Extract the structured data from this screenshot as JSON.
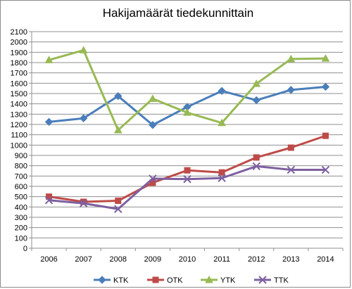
{
  "chart_data": {
    "type": "line",
    "title": "Hakijamäärät tiedekunnittain",
    "xlabel": "",
    "ylabel": "",
    "x": [
      "2006",
      "2007",
      "2008",
      "2009",
      "2010",
      "2011",
      "2012",
      "2013",
      "2014"
    ],
    "ylim": [
      0,
      2100
    ],
    "yticks": [
      0,
      100,
      200,
      300,
      400,
      500,
      600,
      700,
      800,
      900,
      1000,
      1100,
      1200,
      1300,
      1400,
      1500,
      1600,
      1700,
      1800,
      1900,
      2000,
      2100
    ],
    "grid": true,
    "legend_position": "bottom",
    "series": [
      {
        "name": "KTK",
        "color": "#4a7ebb",
        "marker": "diamond",
        "values": [
          1225,
          1260,
          1475,
          1195,
          1370,
          1525,
          1435,
          1535,
          1565
        ]
      },
      {
        "name": "OTK",
        "color": "#be4b48",
        "marker": "square",
        "values": [
          500,
          450,
          460,
          635,
          755,
          735,
          880,
          975,
          1090
        ]
      },
      {
        "name": "YTK",
        "color": "#98b954",
        "marker": "triangle",
        "values": [
          1825,
          1920,
          1145,
          1450,
          1315,
          1215,
          1595,
          1835,
          1840
        ]
      },
      {
        "name": "TTK",
        "color": "#7d60a0",
        "marker": "x",
        "values": [
          465,
          435,
          380,
          675,
          670,
          680,
          795,
          760,
          760
        ]
      }
    ]
  }
}
